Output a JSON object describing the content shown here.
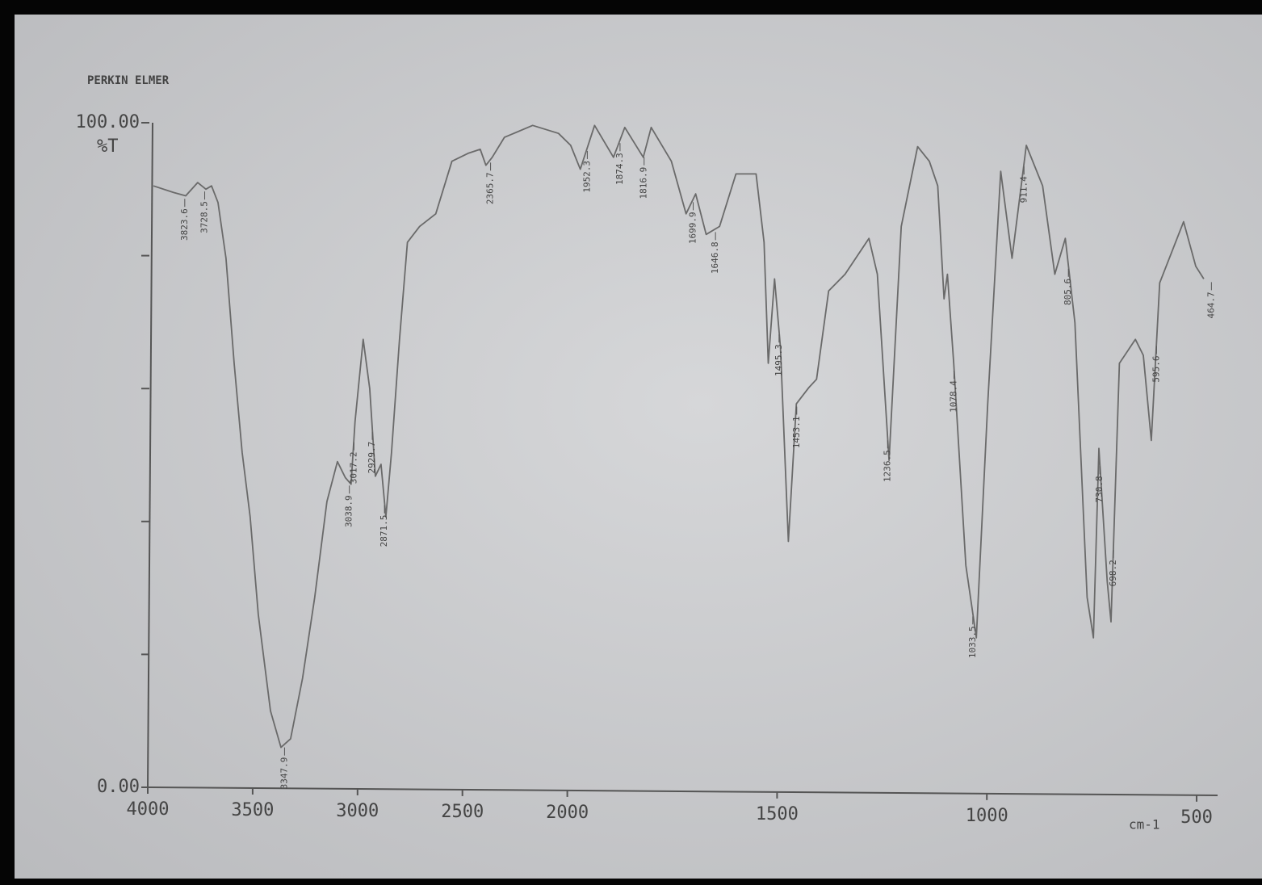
{
  "chart_data": {
    "type": "line",
    "title": "PERKIN ELMER",
    "ylabel": "%T",
    "xlabel": "cm-1",
    "color": "#6a6a6a",
    "xlim": [
      4000,
      450
    ],
    "x_scale_change": 2000,
    "xticks": [
      4000,
      3500,
      3000,
      2500,
      2000,
      1500,
      1000,
      500
    ],
    "ylim": [
      0,
      100
    ],
    "yticks": [
      {
        "value": 0,
        "label": "0.00"
      },
      {
        "value": 100,
        "label": "100.00"
      }
    ],
    "yminor_ticks": [
      20,
      40,
      60,
      80
    ],
    "x": [
      3973,
      3877,
      3819,
      3762,
      3723,
      3696,
      3665,
      3627,
      3588,
      3550,
      3512,
      3473,
      3415,
      3365,
      3319,
      3262,
      3204,
      3146,
      3096,
      3058,
      3031,
      3012,
      2973,
      2942,
      2915,
      2888,
      2865,
      2838,
      2800,
      2762,
      2704,
      2627,
      2550,
      2473,
      2415,
      2388,
      2358,
      2300,
      2165,
      2042,
      1992,
      1969,
      1935,
      1890,
      1863,
      1819,
      1800,
      1752,
      1717,
      1694,
      1669,
      1637,
      1598,
      1550,
      1531,
      1521,
      1506,
      1492,
      1473,
      1454,
      1425,
      1406,
      1377,
      1338,
      1281,
      1261,
      1233,
      1204,
      1165,
      1137,
      1117,
      1102,
      1094,
      1079,
      1050,
      1025,
      998,
      967,
      940,
      906,
      867,
      838,
      813,
      790,
      761,
      746,
      733,
      713,
      704,
      684,
      646,
      627,
      608,
      588,
      531,
      502,
      483
    ],
    "values": [
      90.5,
      89.5,
      89,
      91,
      90,
      90.5,
      88,
      79.6,
      63.8,
      50.4,
      40.7,
      26,
      11.5,
      6,
      7.3,
      16.4,
      28.6,
      43,
      49,
      46.6,
      45.6,
      55,
      67.4,
      60,
      46.8,
      48.6,
      40.7,
      50.4,
      67.4,
      82,
      84.4,
      86.3,
      94.2,
      95.4,
      96,
      93.6,
      94.8,
      97.8,
      99.6,
      98.4,
      96.6,
      93,
      99.6,
      94.8,
      99.3,
      94.8,
      99.3,
      94.2,
      86.3,
      89.3,
      83.2,
      84.4,
      92.3,
      92.3,
      82,
      63.8,
      76.5,
      66.2,
      37,
      57.7,
      60.1,
      61.4,
      74.7,
      77.2,
      82.6,
      77.2,
      49.2,
      84.4,
      96.4,
      94.2,
      90.5,
      73.5,
      77.2,
      63.8,
      33.4,
      22.5,
      57.7,
      92.7,
      79.6,
      96.6,
      90.5,
      77.2,
      82.6,
      69.9,
      28.6,
      22.5,
      51,
      31,
      24.9,
      63.8,
      67.4,
      65,
      52.2,
      75.9,
      85.1,
      78.4,
      76.5
    ],
    "peaks": [
      3823.6,
      3728.5,
      3347.9,
      3038.9,
      3017.2,
      2929.7,
      2871.5,
      2365.7,
      1952.3,
      1874.3,
      1816.9,
      1699.9,
      1646.8,
      1495.3,
      1453.1,
      1236.5,
      1078.4,
      1033.5,
      911.4,
      805.6,
      730.8,
      698.2,
      595.6,
      464.7
    ]
  }
}
